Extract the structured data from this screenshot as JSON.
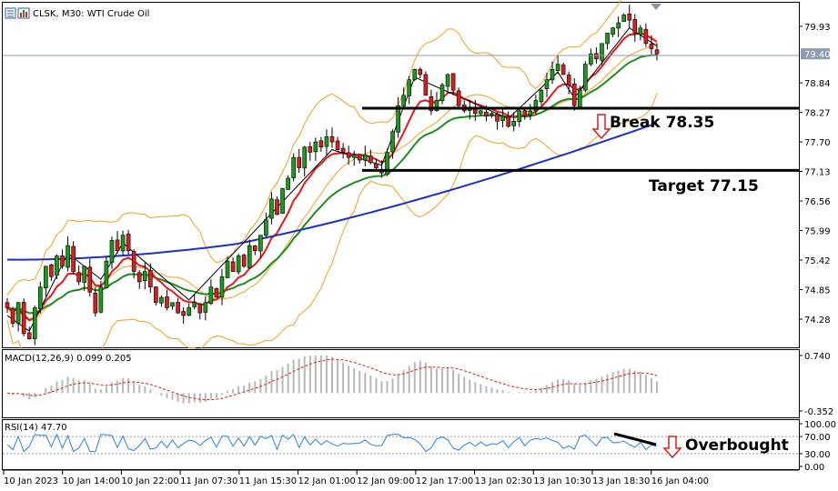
{
  "chart_header": {
    "symbol_line": "CLSK, M30:  WTI Crude Oil",
    "icon_names": [
      "window-list-icon",
      "chart-window-icon"
    ]
  },
  "colors": {
    "bull": "#1a9a1a",
    "bear": "#d81e1e",
    "ema_fast": "#e41a1a",
    "ema_slow": "#1e8c1e",
    "ma_long": "#1b2fc9",
    "bollinger": "#f0a020",
    "zigzag": "#000000",
    "macd_hist": "#b8b8b8",
    "macd_signal": "#d81e1e",
    "rsi": "#2a80e0",
    "arrow": "#d81e1e"
  },
  "chart_data": [
    {
      "type": "candlestick",
      "title": "CLSK, M30:  WTI Crude Oil",
      "x_tick_labels": [
        "10 Jan 2023",
        "10 Jan 14:00",
        "10 Jan 22:00",
        "11 Jan 07:30",
        "11 Jan 15:30",
        "12 Jan 01:00",
        "12 Jan 09:00",
        "12 Jan 17:00",
        "13 Jan 02:30",
        "13 Jan 10:30",
        "13 Jan 18:30",
        "16 Jan 04:00"
      ],
      "y_tick_labels": [
        "79.93",
        "79.40",
        "78.84",
        "78.27",
        "77.70",
        "77.13",
        "76.56",
        "75.99",
        "75.42",
        "74.85",
        "74.28"
      ],
      "ylim": [
        73.8,
        80.35
      ],
      "current_price": "79.40",
      "ohlc_path": [
        74.5,
        74.2,
        74.6,
        74.0,
        73.9,
        74.5,
        74.9,
        75.3,
        75.1,
        75.5,
        75.3,
        75.7,
        75.2,
        75.0,
        75.3,
        74.8,
        74.4,
        74.9,
        75.4,
        75.8,
        75.6,
        75.9,
        75.6,
        75.2,
        75.0,
        75.2,
        74.9,
        74.6,
        74.7,
        74.5,
        74.6,
        74.4,
        74.35,
        74.5,
        74.6,
        74.4,
        74.6,
        74.9,
        74.7,
        75.1,
        75.4,
        75.2,
        75.5,
        75.3,
        75.7,
        75.6,
        75.9,
        76.2,
        76.6,
        76.3,
        76.8,
        77.0,
        77.4,
        77.2,
        77.6,
        77.5,
        77.7,
        77.6,
        77.8,
        77.7,
        77.55,
        77.5,
        77.4,
        77.45,
        77.35,
        77.45,
        77.3,
        77.2,
        77.1,
        77.5,
        77.9,
        78.4,
        78.6,
        78.9,
        79.1,
        79.0,
        78.6,
        78.3,
        78.5,
        78.8,
        79.0,
        78.7,
        78.4,
        78.3,
        78.35,
        78.25,
        78.3,
        78.2,
        78.25,
        78.1,
        78.2,
        78.0,
        78.1,
        78.3,
        78.2,
        78.3,
        78.5,
        78.7,
        78.9,
        79.1,
        79.2,
        79.0,
        78.8,
        78.4,
        78.7,
        79.2,
        79.4,
        79.3,
        79.6,
        79.8,
        79.9,
        80.0,
        80.15,
        80.05,
        79.8,
        79.9,
        79.6,
        79.5,
        79.4
      ],
      "indicators": [
        "Bollinger Bands",
        "Moving Average (red)",
        "Moving Average (green)",
        "Moving Average (blue)",
        "ZigZag"
      ],
      "horizontal_levels": [
        {
          "price": 78.35,
          "label": "Break 78.35",
          "arrow": "down"
        },
        {
          "price": 77.15,
          "label": "Target 77.15"
        }
      ]
    },
    {
      "type": "bar",
      "title": "MACD(12,26,9) 0.099 0.205",
      "y_tick_labels": [
        "0.740",
        "-0.352"
      ],
      "ylim": [
        -0.352,
        0.74
      ],
      "signal_line": true
    },
    {
      "type": "line",
      "title": "RSI(14) 47.70",
      "y_tick_labels": [
        "100.00",
        "70.00",
        "30.00",
        "0.00"
      ],
      "ylim": [
        0,
        100
      ],
      "levels": [
        70,
        30
      ],
      "annotation": {
        "label": "Overbought",
        "arrow": "down"
      }
    }
  ],
  "panes": {
    "macd_title": "MACD(12,26,9) 0.099 0.205",
    "rsi_title": "RSI(14) 47.70"
  },
  "annotations": {
    "break": "Break 78.35",
    "target": "Target 77.15",
    "overbought": "Overbought"
  }
}
